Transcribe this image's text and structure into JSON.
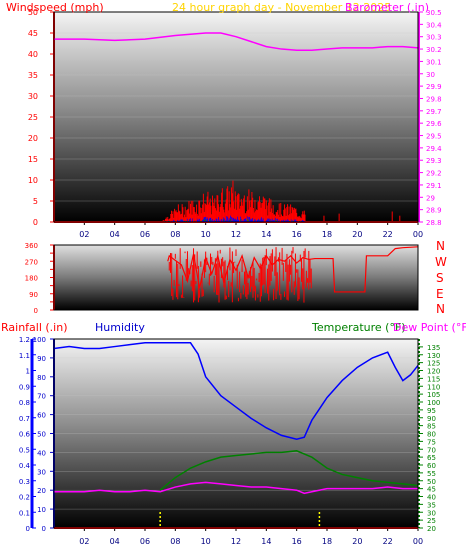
{
  "header": {
    "wind_label": "Windspeed (mph)",
    "center_title": "24 hour graph day - November 12 2025",
    "baro_label": "Barometer (.in)"
  },
  "middle": {
    "compass": [
      "N",
      "W",
      "S",
      "E",
      "N"
    ]
  },
  "lower": {
    "rain_label": "Rainfall (.in)",
    "humidity_label": "Humidity",
    "temp_label": "Temperature (°F)",
    "dew_label": "Dew Point (°F)"
  },
  "colors": {
    "wind": "#ff0000",
    "gust_low": "#0000ff",
    "gust_mid": "#008000",
    "barometer": "#ff00ff",
    "direction": "#ff0000",
    "humidity": "#0000ff",
    "temperature": "#008000",
    "dewpoint": "#ff00ff",
    "rain": "#ff0000",
    "rain_axis": "#0000ff",
    "temp_axis": "#008000"
  },
  "chart_data": [
    {
      "type": "line",
      "name": "wind-baro",
      "title": "24 hour graph day - November 12 2025",
      "ylabel": "Windspeed (mph)",
      "y2label": "Barometer (.in)",
      "x_ticks": [
        "02",
        "04",
        "06",
        "08",
        "10",
        "12",
        "14",
        "16",
        "18",
        "20",
        "22",
        "00"
      ],
      "ylim": [
        0,
        50
      ],
      "y_ticks": [
        0,
        5,
        10,
        15,
        20,
        25,
        30,
        35,
        40,
        45,
        50
      ],
      "y2lim": [
        28.8,
        30.5
      ],
      "y2_ticks": [
        "28.8",
        "28.9",
        "29",
        "29.1",
        "29.2",
        "29.3",
        "29.4",
        "29.5",
        "29.6",
        "29.7",
        "29.8",
        "29.9",
        "30",
        "30.1",
        "30.2",
        "30.3",
        "30.4",
        "30.5"
      ],
      "xlim": [
        0,
        24
      ],
      "series": [
        {
          "name": "Barometer",
          "axis": "y2",
          "x": [
            0,
            2,
            4,
            6,
            8,
            10,
            11,
            12,
            13,
            14,
            15,
            16,
            17,
            18,
            19,
            20,
            21,
            22,
            23,
            24
          ],
          "y": [
            30.28,
            30.28,
            30.27,
            30.28,
            30.31,
            30.33,
            30.33,
            30.3,
            30.26,
            30.22,
            30.2,
            30.19,
            30.19,
            30.2,
            30.21,
            30.21,
            30.21,
            30.22,
            30.22,
            30.21
          ]
        },
        {
          "name": "Windspeed",
          "axis": "y",
          "x": [
            0,
            7,
            7.4,
            7.8,
            8.2,
            8.6,
            9,
            9.4,
            9.8,
            10.2,
            10.6,
            11,
            11.4,
            11.8,
            12.2,
            12.6,
            13,
            13.4,
            13.8,
            14.2,
            14.6,
            15,
            15.4,
            15.8,
            16.2,
            16.6,
            17,
            24
          ],
          "y": [
            0,
            0,
            1,
            2,
            3,
            3,
            4,
            4,
            5,
            5,
            4,
            6,
            6,
            7,
            5,
            6,
            5,
            6,
            5,
            4,
            4,
            3,
            3,
            3,
            2,
            2,
            0,
            0
          ]
        }
      ]
    },
    {
      "type": "line",
      "name": "wind-direction",
      "ylim": [
        0,
        360
      ],
      "y_ticks": [
        0,
        45,
        90,
        135,
        180,
        225,
        270,
        315,
        360
      ],
      "xlim": [
        0,
        24
      ],
      "series": [
        {
          "name": "Wind Direction",
          "x": [
            7.5,
            7.6,
            8.4,
            8.8,
            9.2,
            9.6,
            10,
            10.4,
            10.8,
            11.2,
            11.6,
            12,
            12.4,
            12.8,
            13.2,
            13.6,
            14,
            14.4,
            14.8,
            15.2,
            15.6,
            16,
            16.4,
            16.8,
            17.2,
            17.6,
            18.4,
            18.5,
            20.5,
            20.6,
            21.6,
            22,
            22.5,
            23,
            24
          ],
          "y": [
            270,
            300,
            250,
            160,
            310,
            120,
            290,
            200,
            300,
            150,
            280,
            220,
            300,
            180,
            290,
            230,
            300,
            250,
            280,
            270,
            300,
            260,
            290,
            280,
            285,
            285,
            285,
            100,
            100,
            300,
            300,
            300,
            340,
            345,
            350
          ]
        }
      ]
    },
    {
      "type": "line",
      "name": "temp-humidity",
      "ylabel": "Rainfall (.in)",
      "y2label": "Temperature (°F)",
      "xlim": [
        0,
        24
      ],
      "ylim": [
        0,
        100
      ],
      "y_ticks": [
        0,
        10,
        20,
        30,
        40,
        50,
        60,
        70,
        80,
        90,
        100
      ],
      "rain_ticks": [
        "0",
        "0.1",
        "0.2",
        "0.3",
        "0.4",
        "0.5",
        "0.6",
        "0.7",
        "0.8",
        "0.9",
        "1",
        "1.1",
        "1.2"
      ],
      "y2lim": [
        20,
        140
      ],
      "y2_ticks": [
        20,
        25,
        30,
        35,
        40,
        45,
        50,
        55,
        60,
        65,
        70,
        75,
        80,
        85,
        90,
        95,
        100,
        105,
        110,
        115,
        120,
        125,
        130,
        135
      ],
      "series": [
        {
          "name": "Humidity",
          "axis": "y",
          "x": [
            0,
            1,
            2,
            3,
            4,
            5,
            6,
            7,
            8,
            9,
            9.5,
            10,
            11,
            12,
            13,
            14,
            15,
            16,
            16.5,
            17,
            17.5,
            18,
            19,
            20,
            21,
            22,
            22.5,
            23,
            23.5,
            24
          ],
          "y": [
            95,
            96,
            95,
            95,
            96,
            97,
            98,
            98,
            98,
            98,
            92,
            80,
            70,
            64,
            58,
            53,
            49,
            47,
            48,
            57,
            63,
            69,
            78,
            85,
            90,
            93,
            85,
            78,
            81,
            86
          ]
        },
        {
          "name": "Temperature",
          "axis": "y2",
          "x": [
            7,
            8,
            9,
            10,
            11,
            12,
            13,
            14,
            15,
            16,
            17,
            18,
            19,
            20,
            21,
            22,
            23,
            24
          ],
          "y": [
            44,
            52,
            58,
            62,
            65,
            66,
            67,
            68,
            68,
            69,
            65,
            58,
            54,
            52,
            50,
            49,
            48,
            47
          ]
        },
        {
          "name": "Dew Point",
          "axis": "y2",
          "x": [
            0,
            1,
            2,
            3,
            4,
            5,
            6,
            7,
            8,
            9,
            10,
            11,
            12,
            13,
            14,
            15,
            16,
            16.5,
            17,
            18,
            19,
            20,
            21,
            22,
            23,
            24
          ],
          "y": [
            43,
            43,
            43,
            44,
            43,
            43,
            44,
            43,
            46,
            48,
            49,
            48,
            47,
            46,
            46,
            45,
            44,
            42,
            43,
            45,
            45,
            45,
            45,
            46,
            45,
            45
          ]
        }
      ]
    }
  ]
}
